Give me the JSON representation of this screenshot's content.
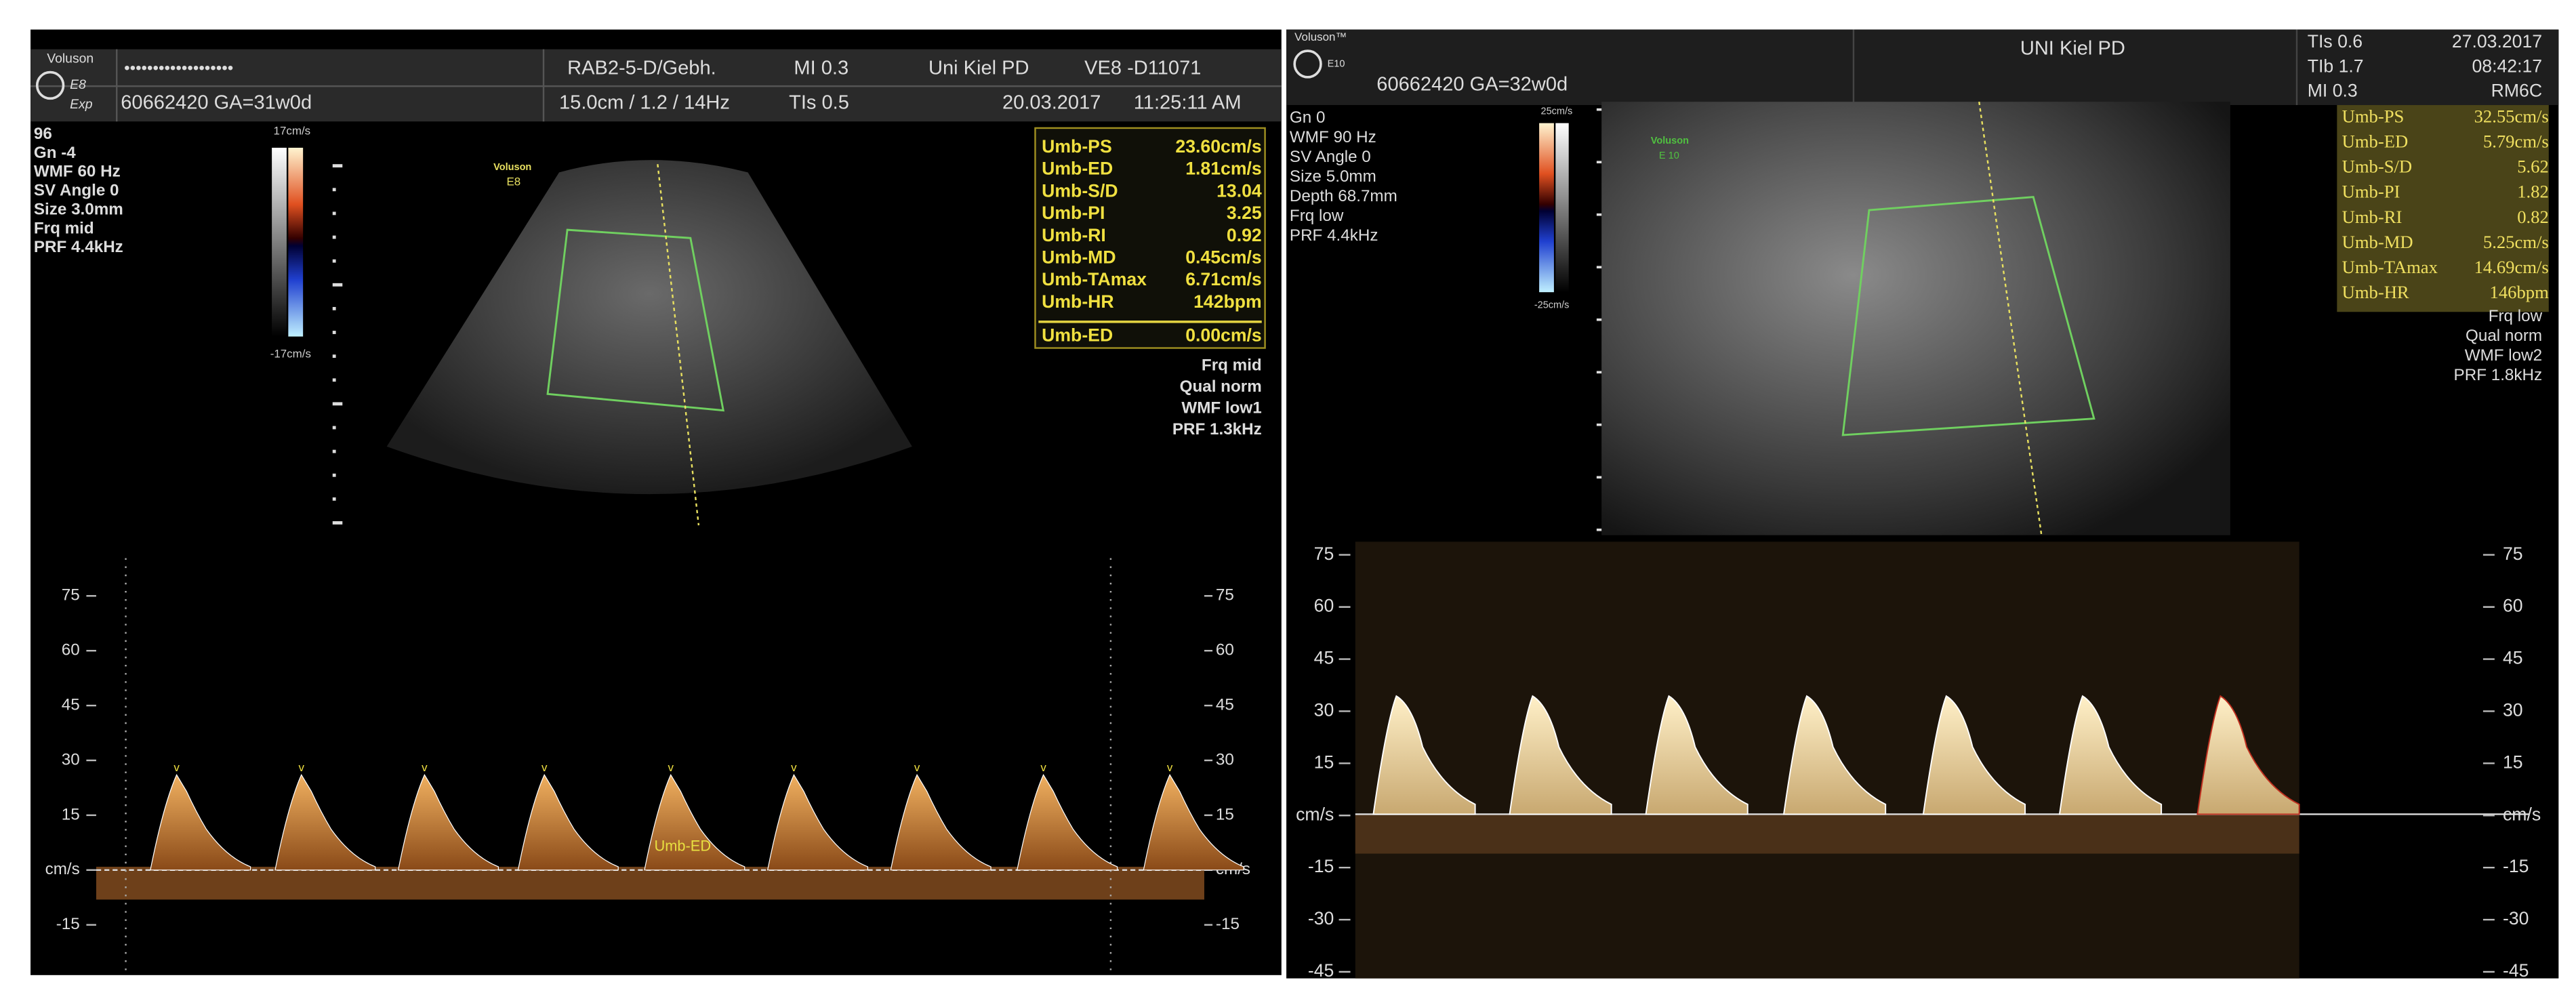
{
  "left": {
    "header": {
      "brand": "Voluson",
      "model": "E8",
      "mode": "Exp",
      "patient_name": "•••••••••••••••••••",
      "probe": "RAB2-5-D/Gebh.",
      "mi": "MI 0.3",
      "institution": "Uni Kiel PD",
      "device": "VE8 -D11071",
      "patient_id": "60662420  GA=31w0d",
      "depth": "15.0cm / 1.2 / 14Hz",
      "tis": "TIs 0.5",
      "date": "20.03.2017",
      "time": "11:25:11 AM"
    },
    "params": [
      "96",
      "Gn  -4",
      "WMF 60 Hz",
      "SV Angle  0",
      "Size  3.0mm",
      "Frq mid",
      "PRF  4.4kHz"
    ],
    "color_scale": {
      "max": "17cm/s",
      "min": "-17cm/s"
    },
    "watermark": [
      "Voluson",
      "E8"
    ],
    "measurements": [
      {
        "label": "Umb-PS",
        "value": "23.60cm/s"
      },
      {
        "label": "Umb-ED",
        "value": "1.81cm/s"
      },
      {
        "label": "Umb-S/D",
        "value": "13.04"
      },
      {
        "label": "Umb-PI",
        "value": "3.25"
      },
      {
        "label": "Umb-RI",
        "value": "0.92"
      },
      {
        "label": "Umb-MD",
        "value": "0.45cm/s"
      },
      {
        "label": "Umb-TAmax",
        "value": "6.71cm/s"
      },
      {
        "label": "Umb-HR",
        "value": "142bpm"
      }
    ],
    "measurement_current": {
      "label": "Umb-ED",
      "value": "0.00cm/s"
    },
    "doppler_params": [
      "Frq mid",
      "Qual norm",
      "WMF low1",
      "PRF  1.3kHz"
    ],
    "doppler": {
      "ticks": [
        "75",
        "60",
        "45",
        "30",
        "15",
        "cm/s",
        "-15"
      ],
      "annotation": "Umb-ED"
    }
  },
  "right": {
    "header": {
      "brand": "Voluson™",
      "model": "E10",
      "patient_id": "60662420  GA=32w0d",
      "institution": "UNI Kiel PD",
      "tis": "TIs  0.6",
      "tib": "TIb  1.7",
      "mi": "MI   0.3",
      "date": "27.03.2017",
      "time": "08:42:17",
      "probe": "RM6C"
    },
    "params": [
      "Gn  0",
      "WMF 90 Hz",
      "SV Angle  0",
      "Size  5.0mm",
      "Depth 68.7mm",
      "Frq low",
      "PRF  4.4kHz"
    ],
    "color_scale": {
      "max": "25cm/s",
      "min": "-25cm/s"
    },
    "watermark": [
      "Voluson",
      "E 10"
    ],
    "measurements": [
      {
        "label": "Umb-PS",
        "value": "32.55cm/s"
      },
      {
        "label": "Umb-ED",
        "value": "5.79cm/s"
      },
      {
        "label": "Umb-S/D",
        "value": "5.62"
      },
      {
        "label": "Umb-PI",
        "value": "1.82"
      },
      {
        "label": "Umb-RI",
        "value": "0.82"
      },
      {
        "label": "Umb-MD",
        "value": "5.25cm/s"
      },
      {
        "label": "Umb-TAmax",
        "value": "14.69cm/s"
      },
      {
        "label": "Umb-HR",
        "value": "146bpm"
      }
    ],
    "doppler_params": [
      "Frq low",
      "Qual norm",
      "WMF low2",
      "PRF  1.8kHz"
    ],
    "doppler": {
      "ticks": [
        "75",
        "60",
        "45",
        "30",
        "15",
        "cm/s",
        "-15",
        "-30",
        "-45"
      ]
    }
  }
}
